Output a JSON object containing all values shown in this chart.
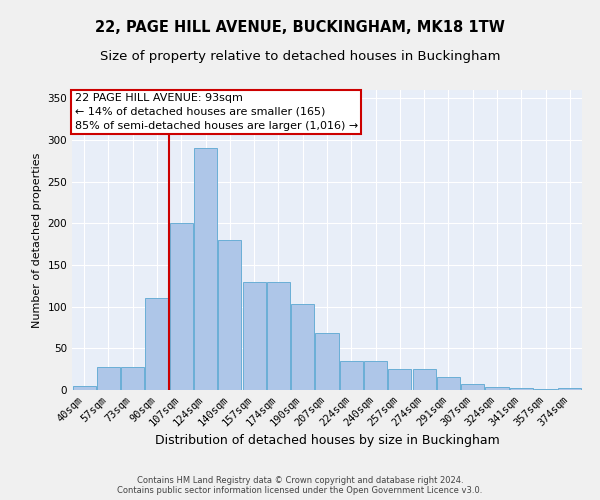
{
  "title": "22, PAGE HILL AVENUE, BUCKINGHAM, MK18 1TW",
  "subtitle": "Size of property relative to detached houses in Buckingham",
  "xlabel": "Distribution of detached houses by size in Buckingham",
  "ylabel": "Number of detached properties",
  "footer_line1": "Contains HM Land Registry data © Crown copyright and database right 2024.",
  "footer_line2": "Contains public sector information licensed under the Open Government Licence v3.0.",
  "categories": [
    "40sqm",
    "57sqm",
    "73sqm",
    "90sqm",
    "107sqm",
    "124sqm",
    "140sqm",
    "157sqm",
    "174sqm",
    "190sqm",
    "207sqm",
    "224sqm",
    "240sqm",
    "257sqm",
    "274sqm",
    "291sqm",
    "307sqm",
    "324sqm",
    "341sqm",
    "357sqm",
    "374sqm"
  ],
  "values": [
    5,
    28,
    28,
    110,
    200,
    290,
    180,
    130,
    130,
    103,
    68,
    35,
    35,
    25,
    25,
    16,
    7,
    4,
    3,
    1,
    2
  ],
  "bar_color": "#aec6e8",
  "bar_edge_color": "#6aaed6",
  "annotation_text": "22 PAGE HILL AVENUE: 93sqm\n← 14% of detached houses are smaller (165)\n85% of semi-detached houses are larger (1,016) →",
  "annotation_box_color": "#ffffff",
  "annotation_box_edge_color": "#cc0000",
  "vline_x": 3.5,
  "vline_color": "#cc0000",
  "ylim": [
    0,
    360
  ],
  "yticks": [
    0,
    50,
    100,
    150,
    200,
    250,
    300,
    350
  ],
  "background_color": "#e8eef8",
  "fig_background_color": "#f0f0f0",
  "grid_color": "#ffffff",
  "title_fontsize": 10.5,
  "subtitle_fontsize": 9.5,
  "xlabel_fontsize": 9,
  "ylabel_fontsize": 8,
  "tick_fontsize": 7.5,
  "annotation_fontsize": 8
}
